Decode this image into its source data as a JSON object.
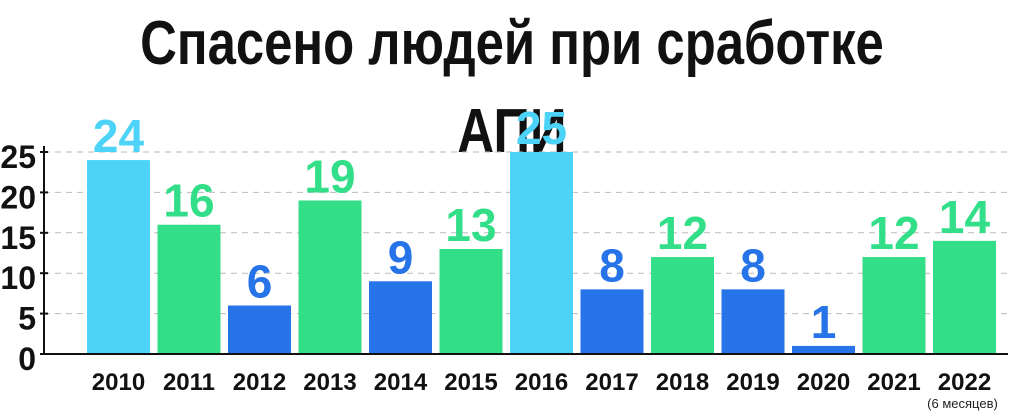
{
  "title": "Спасено людей при сработке АПИ",
  "colors": {
    "light_blue": "#4dd3f7",
    "green": "#33de88",
    "dark_blue": "#2773e8",
    "axis": "#111111",
    "grid": "#bbbbbb"
  },
  "chart_data": {
    "type": "bar",
    "title": "Спасено людей при сработке АПИ",
    "xlabel": "",
    "ylabel": "",
    "categories": [
      "2010",
      "2011",
      "2012",
      "2013",
      "2014",
      "2015",
      "2016",
      "2017",
      "2018",
      "2019",
      "2020",
      "2021",
      "2022"
    ],
    "category_notes": [
      "",
      "",
      "",
      "",
      "",
      "",
      "",
      "",
      "",
      "",
      "",
      "",
      "(6 месяцев)"
    ],
    "values": [
      24,
      16,
      6,
      19,
      9,
      13,
      25,
      8,
      12,
      8,
      1,
      12,
      14
    ],
    "bar_colors": [
      "light_blue",
      "green",
      "dark_blue",
      "green",
      "dark_blue",
      "green",
      "light_blue",
      "dark_blue",
      "green",
      "dark_blue",
      "dark_blue",
      "green",
      "green"
    ],
    "y_ticks": [
      0,
      5,
      10,
      15,
      20,
      25
    ],
    "ylim": [
      0,
      25
    ],
    "grid": true,
    "grid_style": "dashed",
    "data_labels": true
  }
}
